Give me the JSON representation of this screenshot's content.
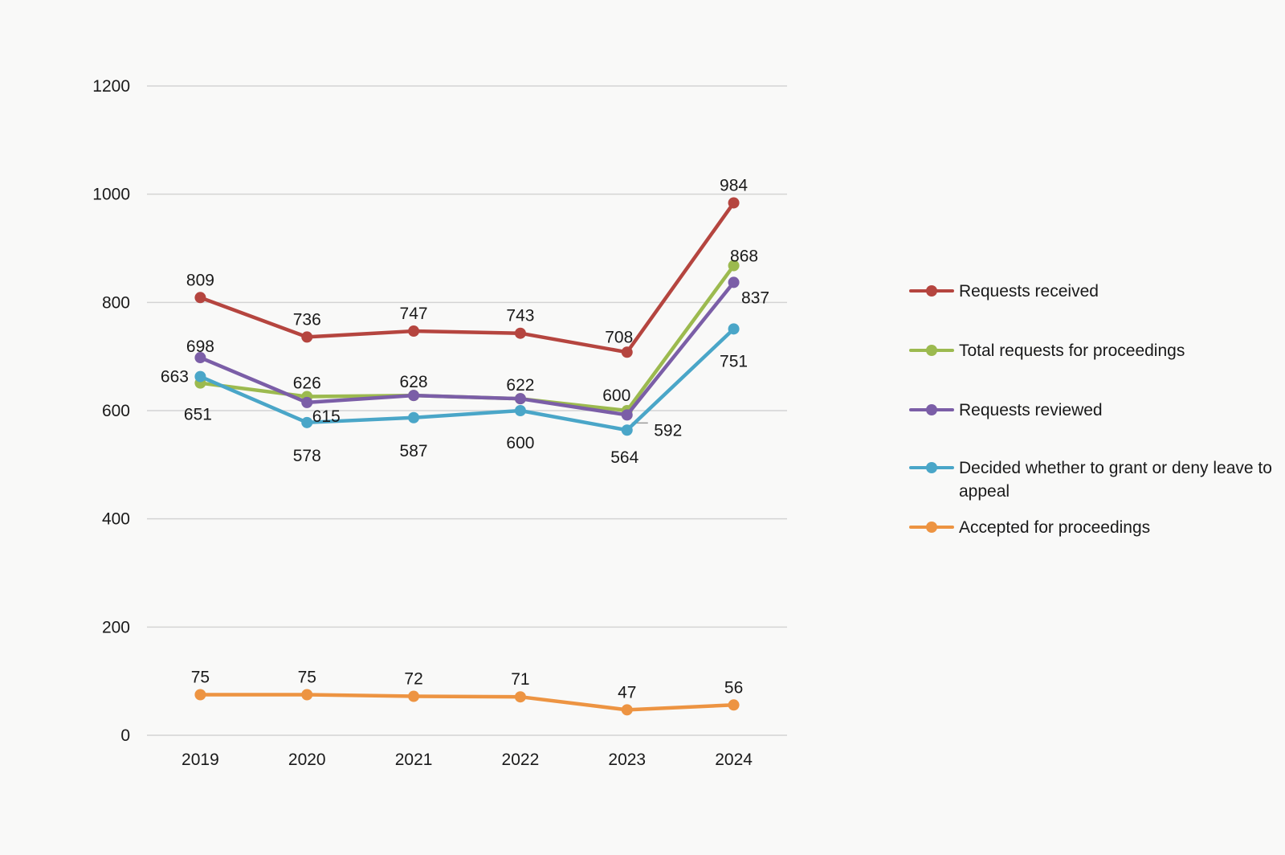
{
  "chart_data": {
    "type": "line",
    "title": "",
    "xlabel": "",
    "ylabel": "",
    "categories": [
      "2019",
      "2020",
      "2021",
      "2022",
      "2023",
      "2024"
    ],
    "ylim": [
      0,
      1200
    ],
    "yticks": [
      "0",
      "200",
      "400",
      "600",
      "800",
      "1000",
      "1200"
    ],
    "grid": true,
    "legend_position": "right",
    "series": [
      {
        "name": "Requests received",
        "color": "#b5453f",
        "values": [
          809,
          736,
          747,
          743,
          708,
          984
        ]
      },
      {
        "name": "Total requests for proceedings",
        "color": "#9cba4f",
        "values": [
          651,
          626,
          628,
          622,
          600,
          868
        ]
      },
      {
        "name": "Requests reviewed",
        "color": "#7b5ea7",
        "values": [
          698,
          615,
          628,
          622,
          592,
          837
        ]
      },
      {
        "name": "Decided whether to grant or deny leave to appeal",
        "color": "#4aa6c8",
        "values": [
          663,
          578,
          587,
          600,
          564,
          751
        ]
      },
      {
        "name": "Accepted for proceedings",
        "color": "#ed9442",
        "values": [
          75,
          75,
          72,
          71,
          47,
          56
        ]
      }
    ],
    "data_labels": [
      {
        "series": 0,
        "index": 0,
        "text": "809"
      },
      {
        "series": 0,
        "index": 1,
        "text": "736"
      },
      {
        "series": 0,
        "index": 2,
        "text": "747"
      },
      {
        "series": 0,
        "index": 3,
        "text": "743"
      },
      {
        "series": 0,
        "index": 4,
        "text": "708"
      },
      {
        "series": 0,
        "index": 5,
        "text": "984"
      },
      {
        "series": 1,
        "index": 0,
        "text": "651"
      },
      {
        "series": 1,
        "index": 1,
        "text": "626"
      },
      {
        "series": 1,
        "index": 2,
        "text": "628"
      },
      {
        "series": 1,
        "index": 3,
        "text": "622"
      },
      {
        "series": 1,
        "index": 4,
        "text": "600"
      },
      {
        "series": 1,
        "index": 5,
        "text": "868"
      },
      {
        "series": 2,
        "index": 0,
        "text": "698"
      },
      {
        "series": 2,
        "index": 1,
        "text": "615"
      },
      {
        "series": 2,
        "index": 4,
        "text": "592"
      },
      {
        "series": 2,
        "index": 5,
        "text": "837"
      },
      {
        "series": 3,
        "index": 0,
        "text": "663"
      },
      {
        "series": 3,
        "index": 1,
        "text": "578"
      },
      {
        "series": 3,
        "index": 2,
        "text": "587"
      },
      {
        "series": 3,
        "index": 3,
        "text": "600"
      },
      {
        "series": 3,
        "index": 4,
        "text": "564"
      },
      {
        "series": 3,
        "index": 5,
        "text": "751"
      },
      {
        "series": 4,
        "index": 0,
        "text": "75"
      },
      {
        "series": 4,
        "index": 1,
        "text": "75"
      },
      {
        "series": 4,
        "index": 2,
        "text": "72"
      },
      {
        "series": 4,
        "index": 3,
        "text": "71"
      },
      {
        "series": 4,
        "index": 4,
        "text": "47"
      },
      {
        "series": 4,
        "index": 5,
        "text": "56"
      }
    ]
  }
}
